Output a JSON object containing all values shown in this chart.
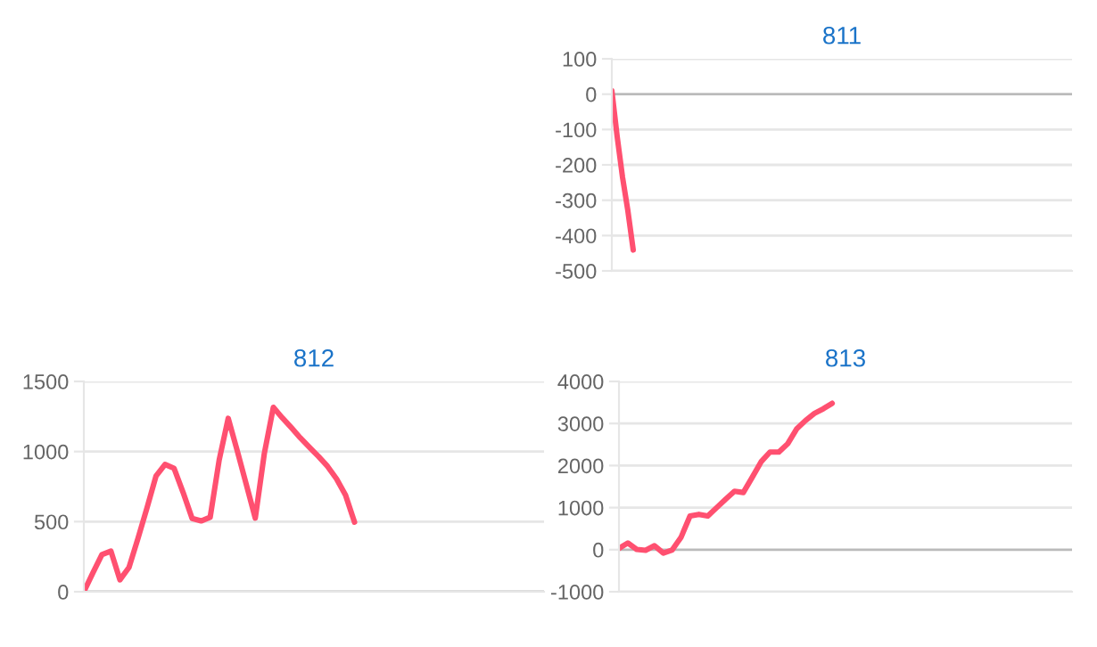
{
  "chart_data": [
    {
      "type": "line",
      "title": "811",
      "color": "#ff5070",
      "grid": "y",
      "tick_labels": "y",
      "ylim": [
        -500,
        100
      ],
      "yticks": [
        -500,
        -400,
        -300,
        -200,
        -100,
        0,
        100
      ],
      "categories": [
        null,
        null,
        null,
        null,
        null,
        null,
        null,
        null,
        null,
        null,
        null,
        null,
        null,
        null,
        null,
        null,
        null,
        null,
        null,
        null,
        null,
        null,
        null,
        null,
        null,
        null,
        null,
        null,
        null,
        null,
        null,
        null,
        null,
        null,
        null,
        null,
        null,
        null,
        null,
        null,
        null,
        null,
        null,
        null,
        null,
        null,
        null,
        null,
        null,
        null,
        null,
        null,
        null,
        null,
        null,
        null,
        null,
        null,
        null,
        null,
        null,
        null,
        null,
        null,
        null,
        null,
        null,
        null,
        null,
        null,
        null,
        null,
        null,
        null,
        null,
        null,
        null,
        null,
        null,
        null,
        null,
        null,
        null,
        null,
        null,
        null,
        null
      ],
      "values": [
        10,
        -120,
        -235,
        -330,
        -441,
        null,
        null,
        null,
        null,
        null,
        null,
        null,
        null,
        null,
        null,
        null,
        null,
        null,
        null,
        null,
        null,
        null,
        null,
        null,
        null,
        null,
        null,
        null,
        null,
        null,
        null,
        null,
        null,
        null,
        null,
        null,
        null,
        null,
        null,
        null,
        null,
        null,
        null,
        null,
        null,
        null,
        null,
        null,
        null,
        null,
        null,
        null,
        null,
        null,
        null,
        null,
        null,
        null,
        null,
        null,
        null,
        null,
        null,
        null,
        null,
        null,
        null,
        null,
        null,
        null,
        null,
        null,
        null,
        null,
        null,
        null,
        null,
        null,
        null,
        null,
        null,
        null,
        null,
        null,
        null,
        null,
        null
      ]
    },
    {
      "type": "line",
      "title": "812",
      "color": "#ff5070",
      "grid": "y",
      "tick_labels": "y",
      "ylim": [
        0,
        1500
      ],
      "yticks": [
        0,
        500,
        1000,
        1500
      ],
      "categories": [
        null,
        null,
        null,
        null,
        null,
        null,
        null,
        null,
        null,
        null,
        null,
        null,
        null,
        null,
        null,
        null,
        null,
        null,
        null,
        null,
        null,
        null,
        null,
        null,
        null,
        null,
        null,
        null,
        null,
        null,
        null,
        null,
        null,
        null,
        null,
        null,
        null,
        null,
        null,
        null,
        null,
        null,
        null,
        null,
        null,
        null,
        null,
        null,
        null,
        null,
        null,
        null
      ],
      "values": [
        0,
        134,
        265,
        290,
        85,
        173,
        381,
        598,
        825,
        908,
        880,
        708,
        523,
        505,
        531,
        940,
        1237,
        1006,
        766,
        525,
        985,
        1315,
        1240,
        1170,
        1097,
        1030,
        965,
        895,
        806,
        690,
        496,
        null,
        null,
        null,
        null,
        null,
        null,
        null,
        null,
        null,
        null,
        null,
        null,
        null,
        null,
        null,
        null,
        null,
        null,
        null,
        null,
        null
      ]
    },
    {
      "type": "line",
      "title": "813",
      "color": "#ff5070",
      "grid": "y",
      "tick_labels": "y",
      "ylim": [
        -1000,
        4000
      ],
      "yticks": [
        -1000,
        0,
        1000,
        2000,
        3000,
        4000
      ],
      "categories": [
        null,
        null,
        null,
        null,
        null,
        null,
        null,
        null,
        null,
        null,
        null,
        null,
        null,
        null,
        null,
        null,
        null,
        null,
        null,
        null,
        null,
        null,
        null,
        null,
        null,
        null,
        null,
        null,
        null,
        null,
        null,
        null,
        null,
        null,
        null,
        null,
        null,
        null,
        null,
        null,
        null,
        null,
        null,
        null,
        null,
        null,
        null,
        null,
        null,
        null,
        null,
        null
      ],
      "values": [
        30,
        160,
        5,
        -15,
        95,
        -80,
        -5,
        300,
        800,
        840,
        800,
        1000,
        1200,
        1390,
        1360,
        1720,
        2090,
        2320,
        2320,
        2520,
        2870,
        3070,
        3240,
        3350,
        3480,
        null,
        null,
        null,
        null,
        null,
        null,
        null,
        null,
        null,
        null,
        null,
        null,
        null,
        null,
        null,
        null,
        null,
        null,
        null,
        null,
        null,
        null,
        null,
        null,
        null,
        null,
        null
      ]
    }
  ]
}
